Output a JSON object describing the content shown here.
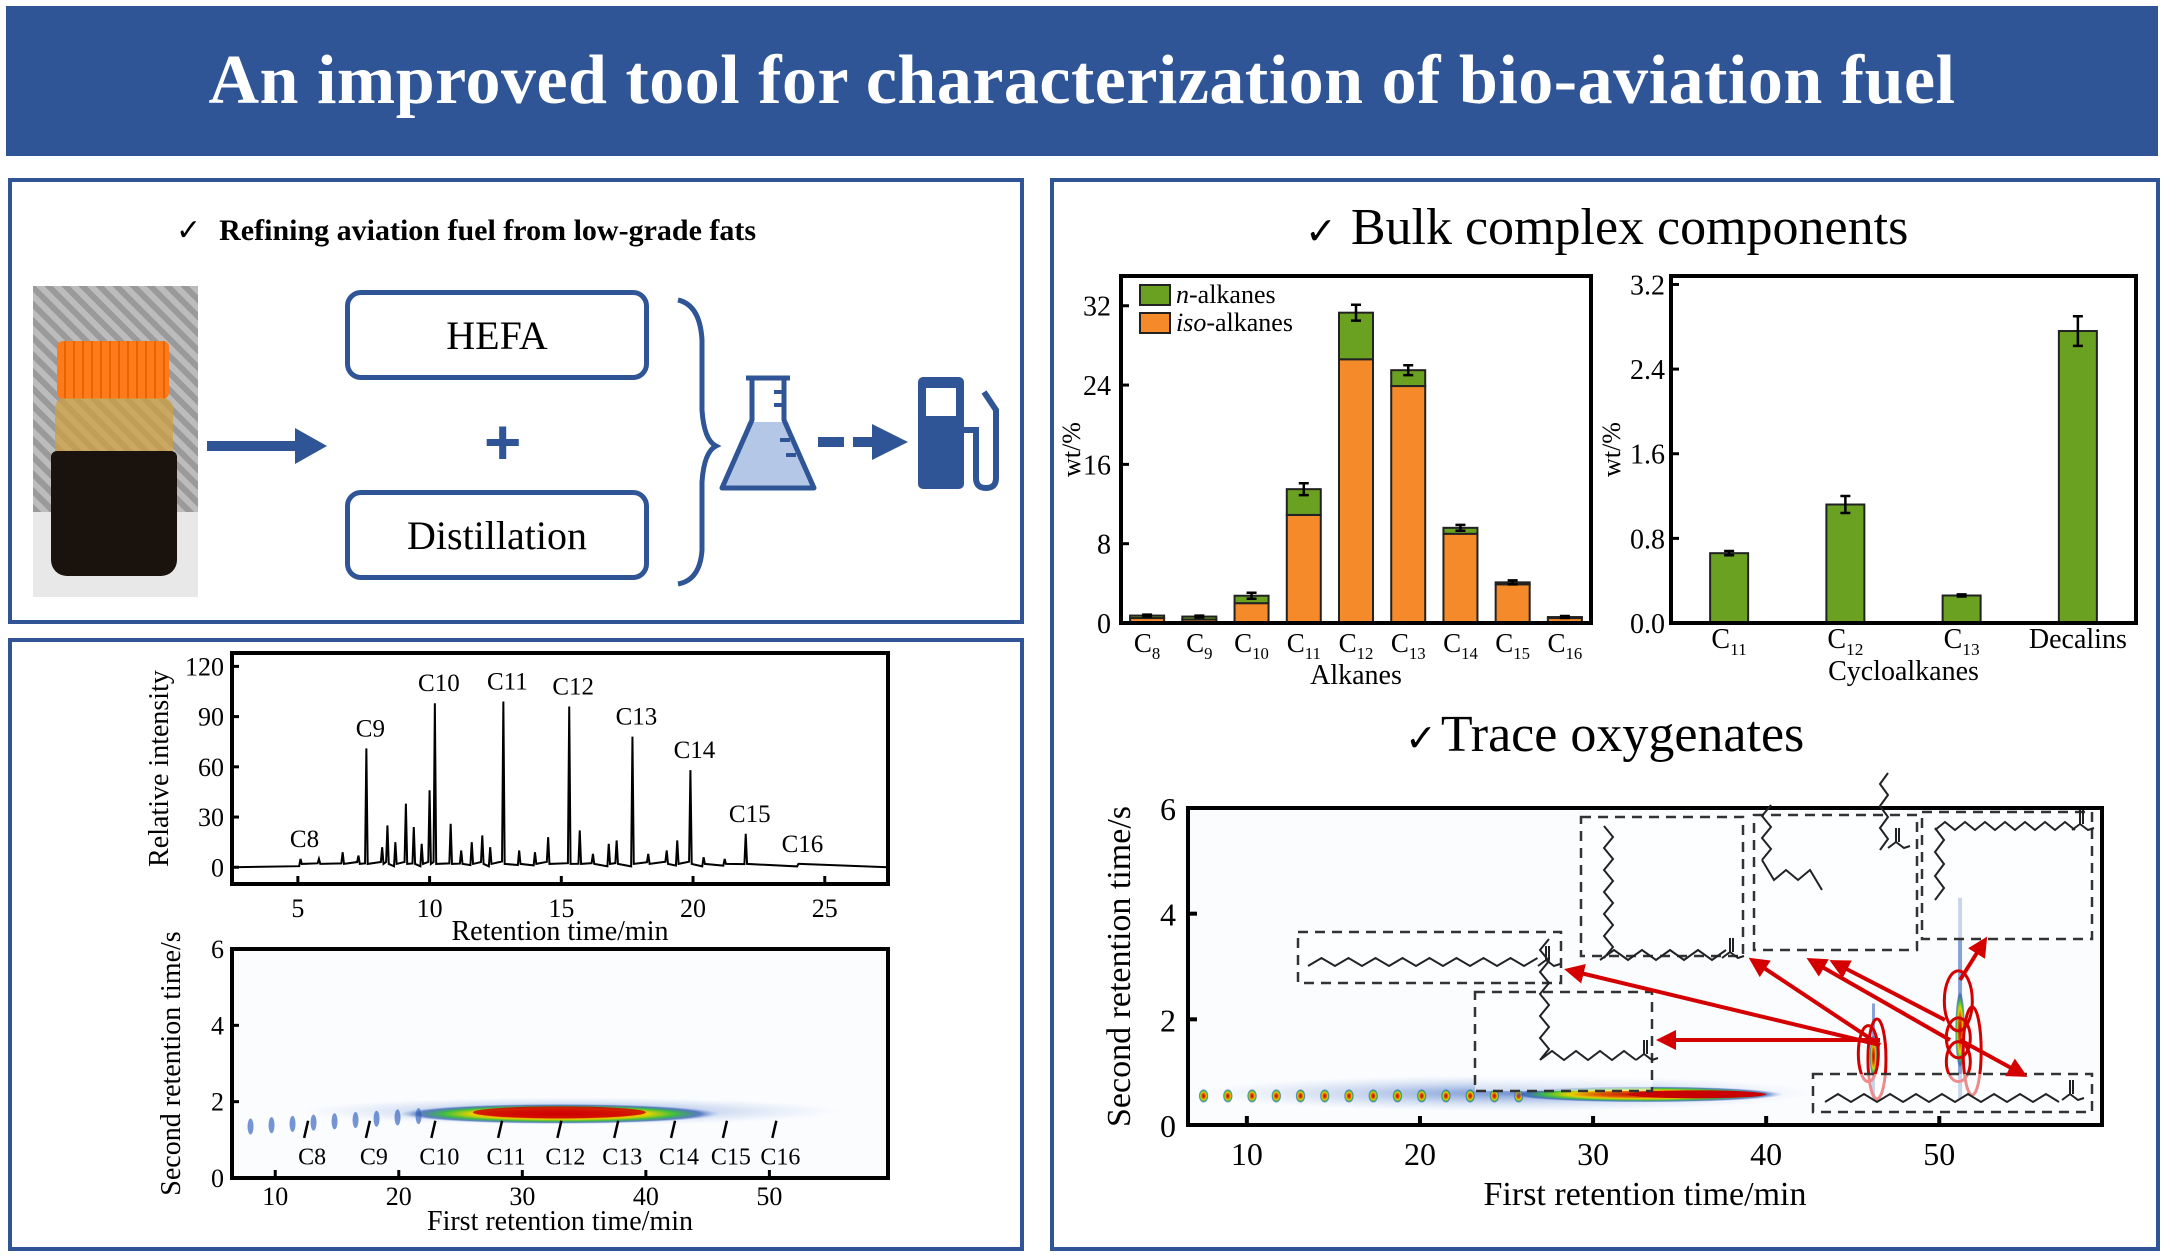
{
  "title": "An improved tool for characterization of bio-aviation fuel",
  "colors": {
    "brand_blue": "#2f5597",
    "n_alkanes": "#6aa121",
    "iso_alkanes": "#f58a2a",
    "arrow_red": "#d40000"
  },
  "refining": {
    "check": "✓",
    "heading": "Refining aviation fuel from low-grade fats",
    "step1": "HEFA",
    "plus": "+",
    "step2": "Distillation",
    "icons": [
      "fat-bottle-photo",
      "arrow-right-icon",
      "brace-icon",
      "flask-icon",
      "dashed-arrow-icon",
      "fuel-pump-icon"
    ]
  },
  "bulk": {
    "check": "✓",
    "heading": "Bulk complex components"
  },
  "trace": {
    "check": "✓",
    "heading": "Trace oxygenates"
  },
  "chart_data": [
    {
      "type": "bar",
      "stacked": true,
      "xlabel": "Alkanes",
      "ylabel": "wt/%",
      "ylim": [
        0,
        35
      ],
      "yticks": [
        0,
        8,
        16,
        24,
        32
      ],
      "categories": [
        "C8",
        "C9",
        "C10",
        "C11",
        "C12",
        "C13",
        "C14",
        "C15",
        "C16"
      ],
      "legend_position": "top-left",
      "series": [
        {
          "name": "iso-alkanes",
          "name_italic": "iso",
          "name_rest": "-alkanes",
          "color": "#f58a2a",
          "values": [
            0.5,
            0.35,
            2.0,
            10.9,
            26.6,
            23.9,
            9.0,
            3.9,
            0.5
          ]
        },
        {
          "name": "n-alkanes",
          "name_italic": "n",
          "name_rest": "-alkanes",
          "color": "#6aa121",
          "values": [
            0.25,
            0.3,
            0.75,
            2.6,
            4.7,
            1.6,
            0.6,
            0.2,
            0.1
          ]
        }
      ],
      "errors": [
        0.1,
        0.1,
        0.3,
        0.6,
        0.8,
        0.5,
        0.3,
        0.2,
        0.1
      ]
    },
    {
      "type": "bar",
      "xlabel": "Cycloalkanes",
      "ylabel": "wt/%",
      "ylim": [
        0,
        3.28
      ],
      "yticks": [
        "0.0",
        "0.8",
        "1.6",
        "2.4",
        "3.2"
      ],
      "categories": [
        "C11",
        "C12",
        "C13",
        "Decalins"
      ],
      "values": [
        0.66,
        1.12,
        0.26,
        2.76
      ],
      "errors": [
        0.02,
        0.08,
        0.01,
        0.14
      ],
      "color": "#6aa121"
    },
    {
      "type": "line",
      "xlabel": "Retention time/min",
      "ylabel": "Relative intensity",
      "xlim": [
        2.5,
        27.4
      ],
      "ylim": [
        -10,
        128
      ],
      "xticks": [
        5,
        10,
        15,
        20,
        25
      ],
      "yticks": [
        0,
        30,
        60,
        90,
        120
      ],
      "labeled_peaks": [
        {
          "label": "C8",
          "x": 5.1,
          "y": 5
        },
        {
          "label": "C9",
          "x": 7.6,
          "y": 71
        },
        {
          "label": "C10",
          "x": 10.2,
          "y": 98
        },
        {
          "label": "C11",
          "x": 12.8,
          "y": 99
        },
        {
          "label": "C12",
          "x": 15.3,
          "y": 96
        },
        {
          "label": "C13",
          "x": 17.7,
          "y": 78
        },
        {
          "label": "C14",
          "x": 19.9,
          "y": 58
        },
        {
          "label": "C15",
          "x": 22.0,
          "y": 20
        },
        {
          "label": "C16",
          "x": 24.0,
          "y": 2
        }
      ],
      "minor_peaks": [
        [
          5.8,
          5
        ],
        [
          6.7,
          9
        ],
        [
          7.3,
          7
        ],
        [
          8.2,
          12
        ],
        [
          8.4,
          25
        ],
        [
          8.7,
          15
        ],
        [
          9.1,
          38
        ],
        [
          9.4,
          24
        ],
        [
          9.7,
          14
        ],
        [
          10.0,
          46
        ],
        [
          10.8,
          26
        ],
        [
          11.2,
          10
        ],
        [
          11.6,
          15
        ],
        [
          12.0,
          19
        ],
        [
          12.3,
          12
        ],
        [
          13.4,
          10
        ],
        [
          14.0,
          9
        ],
        [
          14.5,
          18
        ],
        [
          15.7,
          22
        ],
        [
          16.2,
          8
        ],
        [
          16.8,
          14
        ],
        [
          17.1,
          16
        ],
        [
          18.3,
          8
        ],
        [
          19.0,
          10
        ],
        [
          19.4,
          16
        ],
        [
          20.4,
          6
        ],
        [
          21.2,
          5
        ]
      ]
    },
    {
      "type": "heatmap",
      "xlabel": "First retention time/min",
      "ylabel": "Second retention time/s",
      "xlim": [
        6.5,
        59.6
      ],
      "ylim": [
        0,
        6
      ],
      "xticks": [
        10,
        20,
        30,
        40,
        50
      ],
      "yticks": [
        0,
        2,
        4,
        6
      ],
      "markers": [
        {
          "label": "C8",
          "x": 12.5
        },
        {
          "label": "C9",
          "x": 17.5
        },
        {
          "label": "C10",
          "x": 22.8
        },
        {
          "label": "C11",
          "x": 28.2
        },
        {
          "label": "C12",
          "x": 33.0
        },
        {
          "label": "C13",
          "x": 37.6
        },
        {
          "label": "C14",
          "x": 42.2
        },
        {
          "label": "C15",
          "x": 46.4
        },
        {
          "label": "C16",
          "x": 50.4
        }
      ]
    },
    {
      "type": "heatmap",
      "xlabel": "First retention time/min",
      "ylabel": "Second retention time/s",
      "xlim": [
        6.6,
        59.4
      ],
      "ylim": [
        0,
        6
      ],
      "xticks": [
        10,
        20,
        30,
        40,
        50
      ],
      "yticks": [
        0,
        2,
        4,
        6
      ],
      "highlighted_peaks": [
        [
          45.9,
          1.35
        ],
        [
          46.4,
          1.25
        ],
        [
          51.1,
          2.35
        ],
        [
          51.1,
          1.65
        ],
        [
          51.1,
          1.2
        ],
        [
          51.9,
          1.4
        ]
      ]
    }
  ]
}
